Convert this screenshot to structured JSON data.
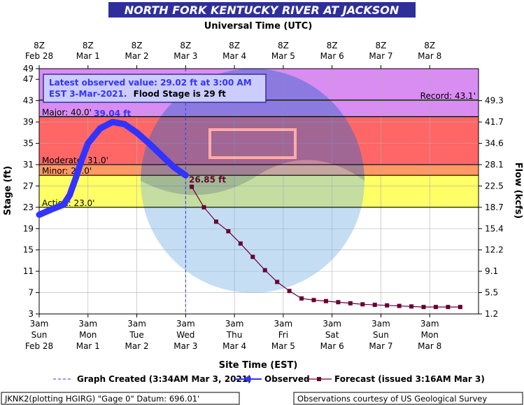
{
  "title": "NORTH FORK KENTUCKY RIVER AT JACKSON",
  "top_axis_title": "Universal Time (UTC)",
  "bottom_axis_title": "Site Time (EST)",
  "left_axis_title": "Stage (ft)",
  "right_axis_title": "Flow (kcfs)",
  "info_box": {
    "line1": "Latest observed value: 29.02 ft at 3:00 AM",
    "line2_a": "EST 3-Mar-2021.",
    "line2_b": "Flood Stage is 29 ft"
  },
  "footer_left": "JKNK2(plotting HGIRG) \"Gage 0\" Datum: 696.01'",
  "footer_right": "Observations courtesy of US Geological Survey",
  "colors": {
    "title_bg": "#2f2f99",
    "plot_bg": "#ffffff",
    "record": "#d98cf2",
    "major": "#ff6666",
    "moderate": "#ff9966",
    "minor": "#ffd24d",
    "action": "#ffff66",
    "observed": "#3333ff",
    "forecast": "#660033"
  },
  "chart_data": {
    "type": "line",
    "ylim": [
      3,
      49
    ],
    "x_range_hours": [
      0,
      216
    ],
    "x_unit": "hours from 3am Sun Feb 28 EST",
    "left_ticks": [
      3,
      7,
      11,
      15,
      19,
      23,
      27,
      31,
      35,
      39,
      43,
      47,
      49
    ],
    "right_ticks": [
      {
        "stage": 3,
        "label": "1.2"
      },
      {
        "stage": 7,
        "label": "5.5"
      },
      {
        "stage": 11,
        "label": "9.1"
      },
      {
        "stage": 15,
        "label": "12.2"
      },
      {
        "stage": 19,
        "label": "15.4"
      },
      {
        "stage": 23,
        "label": "18.7"
      },
      {
        "stage": 27,
        "label": "22.5"
      },
      {
        "stage": 31,
        "label": "28.1"
      },
      {
        "stage": 35,
        "label": "34.6"
      },
      {
        "stage": 39,
        "label": "41.7"
      },
      {
        "stage": 43,
        "label": "49.3"
      }
    ],
    "top_ticks": [
      {
        "l1": "8Z",
        "l2": "Feb 28"
      },
      {
        "l1": "8Z",
        "l2": "Mar 1"
      },
      {
        "l1": "8Z",
        "l2": "Mar 2"
      },
      {
        "l1": "8Z",
        "l2": "Mar 3"
      },
      {
        "l1": "8Z",
        "l2": "Mar 4"
      },
      {
        "l1": "8Z",
        "l2": "Mar 5"
      },
      {
        "l1": "8Z",
        "l2": "Mar 6"
      },
      {
        "l1": "8Z",
        "l2": "Mar 7"
      },
      {
        "l1": "8Z",
        "l2": "Mar 8"
      }
    ],
    "bottom_ticks": [
      {
        "l1": "3am",
        "l2": "Sun",
        "l3": "Feb 28"
      },
      {
        "l1": "3am",
        "l2": "Mon",
        "l3": "Mar 1"
      },
      {
        "l1": "3am",
        "l2": "Tue",
        "l3": "Mar 2"
      },
      {
        "l1": "3am",
        "l2": "Wed",
        "l3": "Mar 3"
      },
      {
        "l1": "3am",
        "l2": "Thu",
        "l3": "Mar 4"
      },
      {
        "l1": "3am",
        "l2": "Fri",
        "l3": "Mar 5"
      },
      {
        "l1": "3am",
        "l2": "Sat",
        "l3": "Mar 6"
      },
      {
        "l1": "3am",
        "l2": "Sun",
        "l3": "Mar 7"
      },
      {
        "l1": "3am",
        "l2": "Mon",
        "l3": "Mar 8"
      }
    ],
    "thresholds": [
      {
        "name": "Record",
        "stage": 43.1,
        "label": "Record: 43.1'"
      },
      {
        "name": "Major",
        "stage": 40.0,
        "label": "Major: 40.0'"
      },
      {
        "name": "Moderate",
        "stage": 31.0,
        "label": "Moderate: 31.0'"
      },
      {
        "name": "Minor",
        "stage": 29.0,
        "label": "Minor: 29.0'"
      },
      {
        "name": "Action",
        "stage": 23.0,
        "label": "Action: 23.0'"
      }
    ],
    "observed": {
      "x": [
        0,
        6,
        12,
        15,
        18,
        21,
        24,
        30,
        36,
        42,
        48,
        54,
        60,
        66,
        72
      ],
      "y": [
        21.6,
        22.6,
        23.5,
        25.3,
        28.5,
        32.0,
        35.0,
        37.8,
        39.0,
        38.6,
        37.0,
        35.0,
        32.8,
        30.6,
        29.0
      ]
    },
    "forecast": {
      "x": [
        75,
        81,
        87,
        93,
        99,
        105,
        111,
        117,
        123,
        129,
        135,
        141,
        147,
        153,
        159,
        165,
        171,
        177,
        183,
        189,
        195,
        201,
        207
      ],
      "y": [
        26.85,
        23.0,
        20.3,
        18.5,
        16.2,
        13.7,
        11.2,
        9.0,
        7.3,
        5.9,
        5.6,
        5.4,
        5.2,
        5.0,
        4.8,
        4.7,
        4.6,
        4.5,
        4.4,
        4.3,
        4.3,
        4.3,
        4.3
      ]
    },
    "peak_label": "39.04 ft",
    "peak_point": {
      "x": 36,
      "y": 39.04
    },
    "forecast_label": "26.85 ft",
    "graph_created_x": 72,
    "legend": [
      {
        "kind": "created",
        "label": "Graph Created (3:34AM Mar 3, 2021)"
      },
      {
        "kind": "observed",
        "label": "Observed"
      },
      {
        "kind": "forecast",
        "label": "Forecast (issued 3:16AM Mar 3)"
      }
    ]
  }
}
